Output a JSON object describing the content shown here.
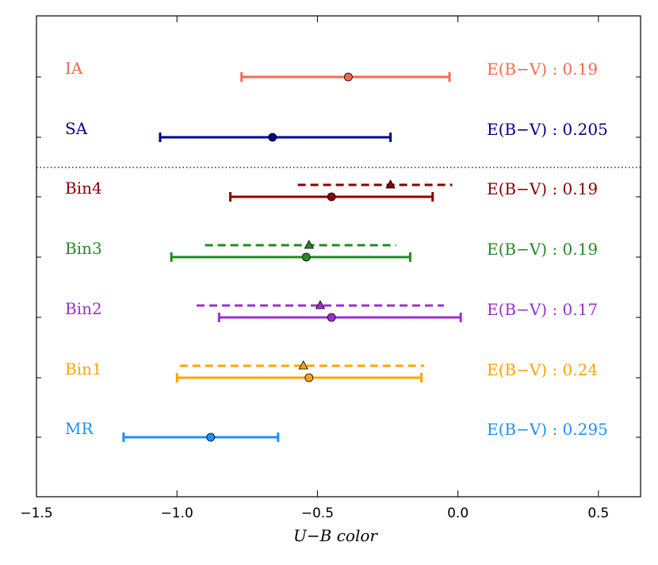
{
  "chart_data": {
    "type": "errorbar",
    "xlabel": "U−B color",
    "xlim": [
      -1.5,
      0.65
    ],
    "xticks": [
      -1.5,
      -1.0,
      -0.5,
      0.0,
      0.5
    ],
    "xtick_labels": [
      "−1.5",
      "−1.0",
      "−0.5",
      "0.0",
      "0.5"
    ],
    "ebv_prefix": "E(B−V) : ",
    "separator": "dotted line between SA and Bin4",
    "rows": [
      {
        "label": "IA",
        "color": "#f26b4f",
        "solid": {
          "center": -0.39,
          "low": -0.77,
          "high": -0.03
        },
        "dashed": null,
        "ebv": "0.19"
      },
      {
        "label": "SA",
        "color": "#00008b",
        "solid": {
          "center": -0.66,
          "low": -1.06,
          "high": -0.24
        },
        "dashed": null,
        "ebv": "0.205"
      },
      {
        "label": "Bin4",
        "color": "#8b0000",
        "solid": {
          "center": -0.45,
          "low": -0.81,
          "high": -0.09
        },
        "dashed": {
          "center": -0.24,
          "low": -0.57,
          "high": -0.02
        },
        "ebv": "0.19"
      },
      {
        "label": "Bin3",
        "color": "#228b22",
        "solid": {
          "center": -0.54,
          "low": -1.02,
          "high": -0.17
        },
        "dashed": {
          "center": -0.53,
          "low": -0.9,
          "high": -0.22
        },
        "ebv": "0.19"
      },
      {
        "label": "Bin2",
        "color": "#9932cc",
        "solid": {
          "center": -0.45,
          "low": -0.85,
          "high": 0.01
        },
        "dashed": {
          "center": -0.49,
          "low": -0.93,
          "high": -0.05
        },
        "ebv": "0.17"
      },
      {
        "label": "Bin1",
        "color": "#ffa500",
        "solid": {
          "center": -0.53,
          "low": -1.0,
          "high": -0.13
        },
        "dashed": {
          "center": -0.55,
          "low": -0.99,
          "high": -0.12
        },
        "ebv": "0.24"
      },
      {
        "label": "MR",
        "color": "#1e90ff",
        "solid": {
          "center": -0.88,
          "low": -1.19,
          "high": -0.64
        },
        "dashed": null,
        "ebv": "0.295"
      }
    ]
  }
}
